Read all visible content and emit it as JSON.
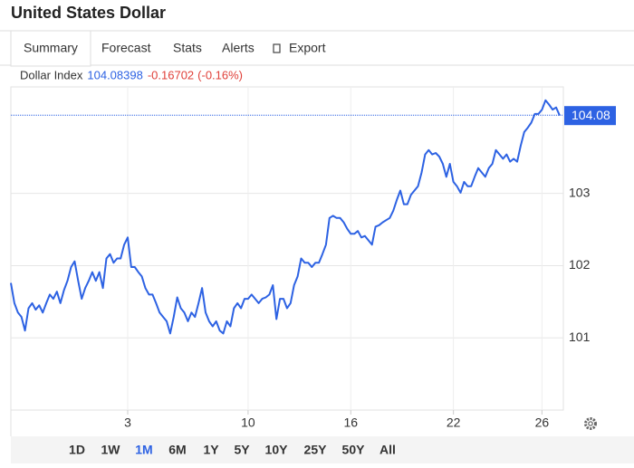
{
  "header": {
    "title": "United States Dollar"
  },
  "tabs": [
    "Summary",
    "Forecast",
    "Stats",
    "Alerts",
    "Export"
  ],
  "quote": {
    "name": "Dollar Index",
    "price": 104.08398,
    "change": -0.16702,
    "change_pct": "(-0.16%)",
    "price_label": "104.08"
  },
  "chart_data": {
    "type": "line",
    "color": "#2d62e3",
    "values": [
      101.76,
      101.48,
      101.35,
      101.29,
      101.1,
      101.41,
      101.48,
      101.39,
      101.45,
      101.35,
      101.48,
      101.6,
      101.54,
      101.64,
      101.48,
      101.66,
      101.79,
      101.98,
      102.06,
      101.79,
      101.54,
      101.69,
      101.79,
      101.91,
      101.79,
      101.91,
      101.69,
      102.1,
      102.16,
      102.04,
      102.1,
      102.1,
      102.29,
      102.39,
      101.98,
      101.98,
      101.91,
      101.85,
      101.69,
      101.6,
      101.6,
      101.48,
      101.35,
      101.29,
      101.23,
      101.06,
      101.29,
      101.56,
      101.41,
      101.35,
      101.23,
      101.35,
      101.29,
      101.48,
      101.69,
      101.35,
      101.23,
      101.16,
      101.23,
      101.1,
      101.06,
      101.23,
      101.16,
      101.41,
      101.48,
      101.41,
      101.54,
      101.54,
      101.6,
      101.54,
      101.48,
      101.54,
      101.56,
      101.6,
      101.73,
      101.26,
      101.54,
      101.54,
      101.41,
      101.48,
      101.73,
      101.85,
      102.1,
      102.04,
      102.04,
      101.98,
      102.04,
      102.04,
      102.16,
      102.29,
      102.66,
      102.69,
      102.66,
      102.66,
      102.6,
      102.51,
      102.44,
      102.44,
      102.48,
      102.39,
      102.41,
      102.35,
      102.29,
      102.54,
      102.56,
      102.6,
      102.63,
      102.66,
      102.76,
      102.91,
      103.04,
      102.85,
      102.85,
      102.98,
      103.04,
      103.1,
      103.29,
      103.54,
      103.6,
      103.54,
      103.56,
      103.51,
      103.41,
      103.23,
      103.41,
      103.16,
      103.1,
      103.01,
      103.16,
      103.1,
      103.1,
      103.23,
      103.35,
      103.29,
      103.23,
      103.35,
      103.41,
      103.6,
      103.54,
      103.48,
      103.54,
      103.44,
      103.48,
      103.44,
      103.66,
      103.85,
      103.91,
      103.98,
      104.1,
      104.1,
      104.16,
      104.29,
      104.23,
      104.16,
      104.19,
      104.08
    ],
    "xlim": [
      0,
      154
    ],
    "xticks": [
      {
        "value": 33,
        "label": "3"
      },
      {
        "value": 67,
        "label": "10"
      },
      {
        "value": 96,
        "label": "16"
      },
      {
        "value": 125,
        "label": "22"
      },
      {
        "value": 150,
        "label": "26"
      }
    ],
    "ylim": [
      100,
      104.475
    ],
    "yticks": [
      101,
      102,
      103
    ],
    "grid": true
  },
  "ranges": [
    "1D",
    "1W",
    "1M",
    "6M",
    "1Y",
    "5Y",
    "10Y",
    "25Y",
    "50Y",
    "All"
  ],
  "selected_range": "1M",
  "selected_tab": "Summary"
}
